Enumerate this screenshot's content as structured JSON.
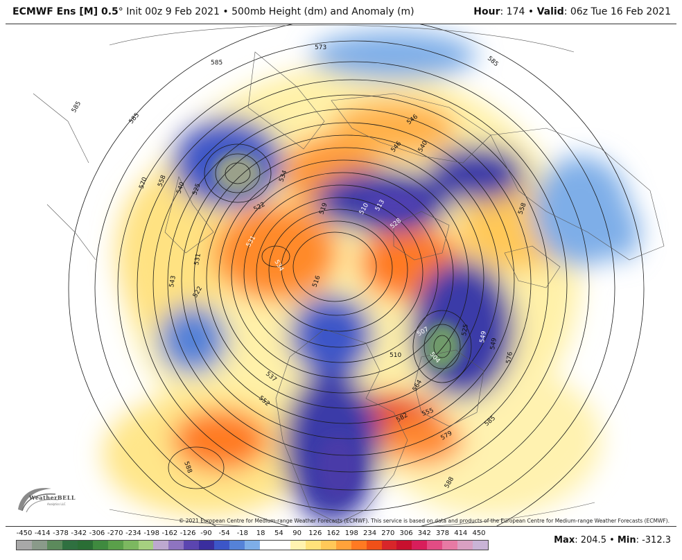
{
  "header": {
    "model": "ECMWF Ens [M] 0.5",
    "degree": "°",
    "init": "Init 00z 9 Feb 2021",
    "bullet": "•",
    "field": "500mb Height (dm) and Anomaly (m)",
    "hour_label": "Hour",
    "hour_value": ": 174",
    "valid_label": "Valid",
    "valid_value": ": 06z Tue 16 Feb 2021"
  },
  "map": {
    "contour_labels": [
      "573",
      "585",
      "585",
      "585",
      "585",
      "570",
      "558",
      "540",
      "525",
      "534",
      "522",
      "519",
      "513",
      "510",
      "516",
      "531",
      "534",
      "531",
      "546",
      "543",
      "522",
      "540",
      "537",
      "549",
      "552",
      "504",
      "507",
      "525",
      "549",
      "576",
      "558",
      "510",
      "564",
      "555",
      "579",
      "585",
      "582",
      "588",
      "588",
      "546",
      "528"
    ],
    "copyright": "© 2021 European Centre for Medium-range Weather Forecasts (ECMWF). This service is based on data and products of the European Centre for Medium-range Weather Forecasts (ECMWF).",
    "logo_text": "WeatherBELL",
    "logo_sub": "Analytics LLC"
  },
  "legend": {
    "ticks": [
      "-450",
      "-414",
      "-378",
      "-342",
      "-306",
      "-270",
      "-234",
      "-198",
      "-162",
      "-126",
      "-90",
      "-54",
      "-18",
      "18",
      "54",
      "90",
      "126",
      "162",
      "198",
      "234",
      "270",
      "306",
      "342",
      "378",
      "414",
      "450"
    ],
    "colors": [
      "#a8a8a8",
      "#8a9a8a",
      "#5c8a5c",
      "#2f7040",
      "#2a6e35",
      "#3f8a3f",
      "#5aa04a",
      "#7cb860",
      "#a6d080",
      "#bda8cf",
      "#8e74c0",
      "#5b45b0",
      "#3a2e9e",
      "#3c56c8",
      "#5582d8",
      "#7eaee8",
      "#ffffff",
      "#ffffff",
      "#fff3b0",
      "#ffe27a",
      "#ffc858",
      "#ffa23a",
      "#ff7a22",
      "#f05018",
      "#d8262a",
      "#c8102e",
      "#d81e5b",
      "#e24c84",
      "#e77aa4",
      "#d9a0c2",
      "#c9b4d6"
    ]
  },
  "stats": {
    "max_label": "Max",
    "max_value": ": 204.5",
    "bullet": "•",
    "min_label": "Min",
    "min_value": ": -312.3"
  }
}
